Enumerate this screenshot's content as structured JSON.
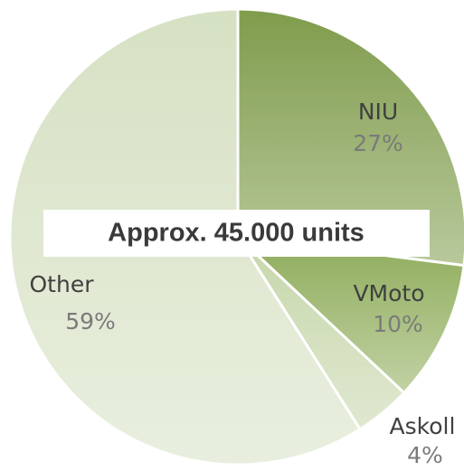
{
  "chart_data": {
    "type": "pie",
    "annotation": "Approx. 45.000 units",
    "categories": [
      "NIU",
      "VMoto",
      "Askoll",
      "Other"
    ],
    "values": [
      27,
      10,
      4,
      59
    ],
    "value_labels": [
      "27%",
      "10%",
      "4%",
      "59%"
    ],
    "colors": [
      "#7f9c4c",
      "#8eac5a",
      "#c6d6aa",
      "#d6e1c3"
    ]
  }
}
